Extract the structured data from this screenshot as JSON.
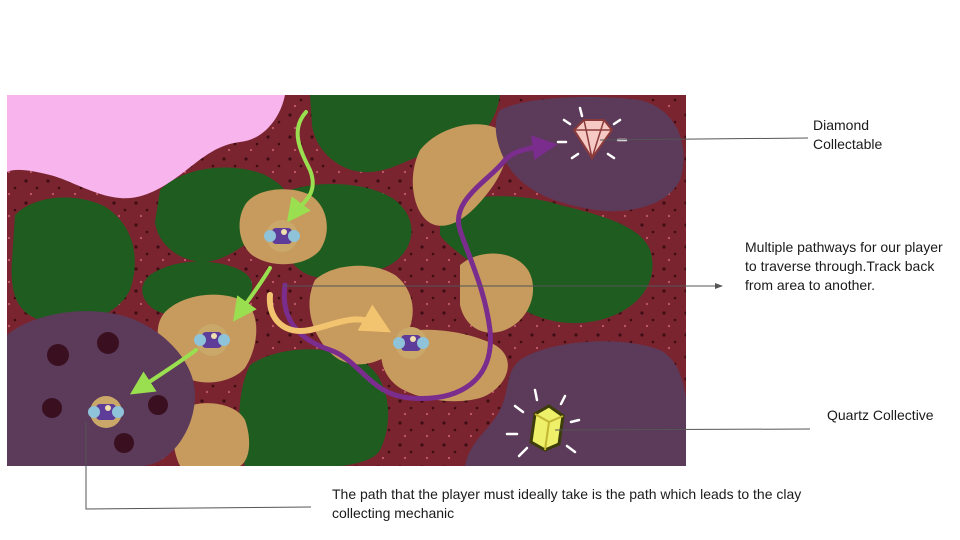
{
  "colors": {
    "background": "#7a2430",
    "pink_area": "#f8b4ec",
    "forest": "#1f5c1f",
    "clay": "#c79a5e",
    "cave": "#5c3a59",
    "purple_path": "#7b2d8e",
    "green_arrow": "#9adf4f",
    "orange_arrow": "#f2c46f"
  },
  "annotations": {
    "diamond": "Diamond\nCollectable",
    "pathways": "Multiple pathways for our player to traverse through.Track back from area to another.",
    "quartz": "Quartz Collective",
    "ideal_path": "The path that the player must ideally take is the path which leads to the clay collecting mechanic"
  },
  "icons": {
    "player": "player-character-icon",
    "diamond": "diamond-gem-icon",
    "quartz": "quartz-crystal-icon"
  }
}
